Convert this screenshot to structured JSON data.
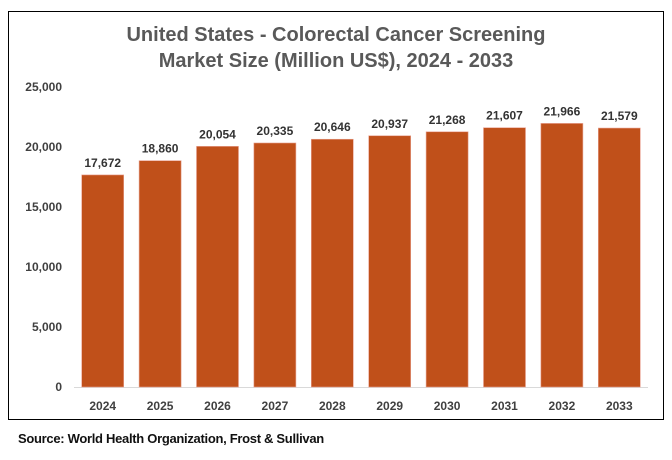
{
  "chart_data": {
    "type": "bar",
    "title_lines": [
      "United States - Colorectal Cancer Screening",
      "Market Size (Million US$), 2024 - 2033"
    ],
    "categories": [
      "2024",
      "2025",
      "2026",
      "2027",
      "2028",
      "2029",
      "2030",
      "2031",
      "2032",
      "2033"
    ],
    "values": [
      17672,
      18860,
      20054,
      20335,
      20646,
      20937,
      21268,
      21607,
      21966,
      21579
    ],
    "data_labels": [
      "17,672",
      "18,860",
      "20,054",
      "20,335",
      "20,646",
      "20,937",
      "21,268",
      "21,607",
      "21,966",
      "21,579"
    ],
    "yticks": [
      0,
      5000,
      10000,
      15000,
      20000,
      25000
    ],
    "ytick_labels": [
      "0",
      "5,000",
      "10,000",
      "15,000",
      "20,000",
      "25,000"
    ],
    "ylim": [
      0,
      25000
    ],
    "xlabel": "",
    "ylabel": "",
    "grid": false,
    "legend": "none",
    "bar_color": "#C0501A"
  },
  "source": "Source: World Health Organization, Frost & Sullivan"
}
